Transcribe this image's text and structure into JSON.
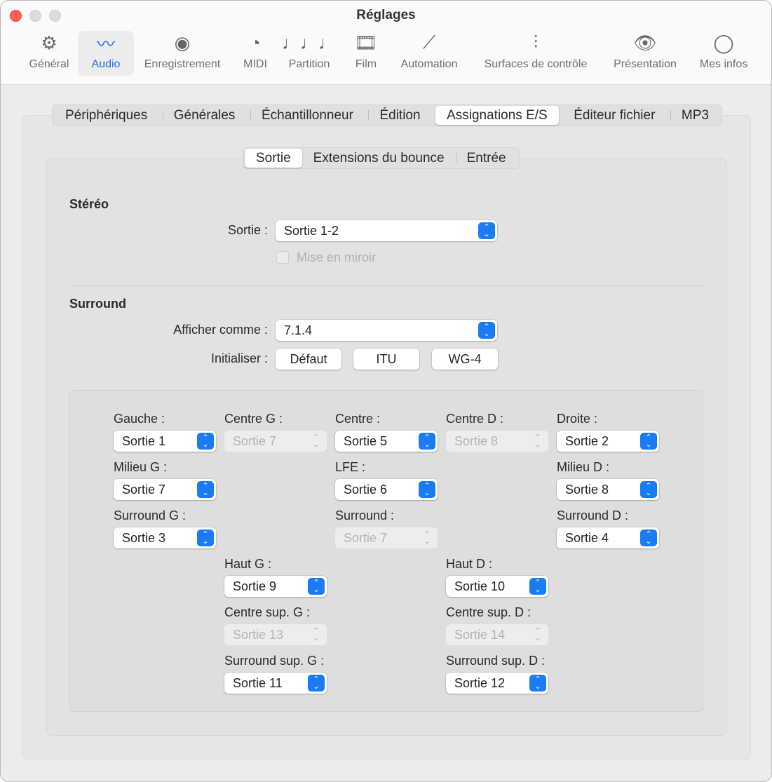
{
  "window": {
    "title": "Réglages"
  },
  "toolbar": {
    "items": [
      {
        "label": "Général",
        "icon": "gear-icon"
      },
      {
        "label": "Audio",
        "icon": "waveform-icon",
        "selected": true
      },
      {
        "label": "Enregistrement",
        "icon": "record-icon"
      },
      {
        "label": "MIDI",
        "icon": "midi-icon"
      },
      {
        "label": "Partition",
        "icon": "notes-icon"
      },
      {
        "label": "Film",
        "icon": "film-icon"
      },
      {
        "label": "Automation",
        "icon": "automation-icon"
      },
      {
        "label": "Surfaces de contrôle",
        "icon": "sliders-icon"
      },
      {
        "label": "Présentation",
        "icon": "eye-icon"
      },
      {
        "label": "Mes infos",
        "icon": "person-icon"
      }
    ]
  },
  "tabs": [
    "Périphériques",
    "Générales",
    "Échantillonneur",
    "Édition",
    "Assignations E/S",
    "Éditeur fichier",
    "MP3"
  ],
  "selected_tab": "Assignations E/S",
  "subtabs": [
    "Sortie",
    "Extensions du bounce",
    "Entrée"
  ],
  "selected_subtab": "Sortie",
  "stereo": {
    "heading": "Stéréo",
    "output_label": "Sortie :",
    "output_value": "Sortie 1-2",
    "mirror_label": "Mise en miroir",
    "mirror_checked": false
  },
  "surround": {
    "heading": "Surround",
    "display_label": "Afficher comme :",
    "display_value": "7.1.4",
    "init_label": "Initialiser :",
    "buttons": [
      "Défaut",
      "ITU",
      "WG-4"
    ],
    "channels": [
      {
        "label": "Gauche :",
        "value": "Sortie 1",
        "disabled": false
      },
      {
        "label": "Centre G :",
        "value": "Sortie 7",
        "disabled": true
      },
      {
        "label": "Centre :",
        "value": "Sortie 5",
        "disabled": false
      },
      {
        "label": "Centre D :",
        "value": "Sortie 8",
        "disabled": true
      },
      {
        "label": "Droite :",
        "value": "Sortie 2",
        "disabled": false
      },
      {
        "label": "Milieu G :",
        "value": "Sortie 7",
        "disabled": false
      },
      {
        "label": "LFE :",
        "value": "Sortie 6",
        "disabled": false
      },
      {
        "label": "Milieu D :",
        "value": "Sortie 8",
        "disabled": false
      },
      {
        "label": "Surround G :",
        "value": "Sortie 3",
        "disabled": false
      },
      {
        "label": "Surround :",
        "value": "Sortie 7",
        "disabled": true
      },
      {
        "label": "Surround D :",
        "value": "Sortie 4",
        "disabled": false
      },
      {
        "label": "Haut G :",
        "value": "Sortie 9",
        "disabled": false
      },
      {
        "label": "Haut D :",
        "value": "Sortie 10",
        "disabled": false
      },
      {
        "label": "Centre sup. G :",
        "value": "Sortie 13",
        "disabled": true
      },
      {
        "label": "Centre sup. D :",
        "value": "Sortie 14",
        "disabled": true
      },
      {
        "label": "Surround sup. G :",
        "value": "Sortie 11",
        "disabled": false
      },
      {
        "label": "Surround sup. D :",
        "value": "Sortie 12",
        "disabled": false
      }
    ]
  },
  "colors": {
    "accent": "#1a7cf5",
    "close": "#fe5f57"
  }
}
